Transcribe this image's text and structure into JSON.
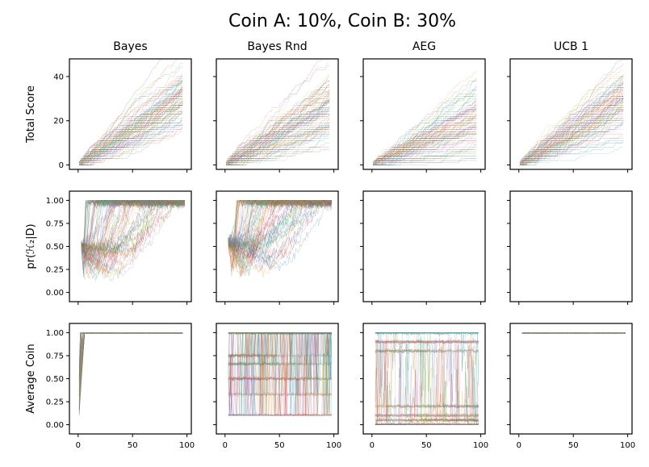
{
  "figure": {
    "title": "Coin A: 10%, Coin B: 30%"
  },
  "palette": [
    "#1f77b4",
    "#ff7f0e",
    "#2ca02c",
    "#d62728",
    "#9467bd",
    "#8c564b",
    "#e377c2",
    "#7f7f7f",
    "#bcbd22",
    "#17becf"
  ],
  "chart_data": [
    {
      "id": "bayes-total-score",
      "type": "line",
      "row": 0,
      "col": 0,
      "title": "Bayes",
      "ylabel": "Total Score",
      "xlim": [
        -8,
        104
      ],
      "ylim": [
        -2,
        48
      ],
      "xticks": [
        0,
        50,
        100
      ],
      "yticks": [
        0,
        20,
        40
      ],
      "ytick_labels": [
        "0",
        "20",
        "40"
      ],
      "show_x_labels": false,
      "show_y_labels": true,
      "n_runs": 90,
      "n_steps": 96,
      "pattern": {
        "kind": "cumulative",
        "rate_mean": 0.3,
        "rate_spread": 0.07,
        "start_x": 1
      }
    },
    {
      "id": "bayes-rnd-total-score",
      "type": "line",
      "row": 0,
      "col": 1,
      "title": "Bayes Rnd",
      "ylabel": "",
      "xlim": [
        -8,
        104
      ],
      "ylim": [
        -2,
        48
      ],
      "xticks": [
        0,
        50,
        100
      ],
      "yticks": [
        0,
        20,
        40
      ],
      "ytick_labels": [
        "0",
        "20",
        "40"
      ],
      "show_x_labels": false,
      "show_y_labels": false,
      "n_runs": 90,
      "n_steps": 96,
      "pattern": {
        "kind": "cumulative",
        "rate_mean": 0.27,
        "rate_spread": 0.08,
        "start_x": 1
      }
    },
    {
      "id": "aeg-total-score",
      "type": "line",
      "row": 0,
      "col": 2,
      "title": "AEG",
      "ylabel": "",
      "xlim": [
        -8,
        104
      ],
      "ylim": [
        -2,
        48
      ],
      "xticks": [
        0,
        50,
        100
      ],
      "yticks": [
        0,
        20,
        40
      ],
      "ytick_labels": [
        "0",
        "20",
        "40"
      ],
      "show_x_labels": false,
      "show_y_labels": false,
      "n_runs": 90,
      "n_steps": 96,
      "pattern": {
        "kind": "cumulative",
        "rate_mean": 0.2,
        "rate_spread": 0.09,
        "start_x": 1
      }
    },
    {
      "id": "ucb1-total-score",
      "type": "line",
      "row": 0,
      "col": 3,
      "title": "UCB 1",
      "ylabel": "",
      "xlim": [
        -8,
        104
      ],
      "ylim": [
        -2,
        48
      ],
      "xticks": [
        0,
        50,
        100
      ],
      "yticks": [
        0,
        20,
        40
      ],
      "ytick_labels": [
        "0",
        "20",
        "40"
      ],
      "show_x_labels": false,
      "show_y_labels": false,
      "n_runs": 90,
      "n_steps": 96,
      "pattern": {
        "kind": "cumulative",
        "rate_mean": 0.29,
        "rate_spread": 0.07,
        "start_x": 1
      }
    },
    {
      "id": "bayes-posterior",
      "type": "line",
      "row": 1,
      "col": 0,
      "title": "",
      "ylabel": "pr(ℋ₂|D)",
      "xlim": [
        -8,
        104
      ],
      "ylim": [
        -0.1,
        1.1
      ],
      "xticks": [
        0,
        50,
        100
      ],
      "yticks": [
        0,
        0.25,
        0.5,
        0.75,
        1.0
      ],
      "ytick_labels": [
        "0.00",
        "0.25",
        "0.50",
        "0.75",
        "1.00"
      ],
      "show_x_labels": false,
      "show_y_labels": true,
      "n_runs": 90,
      "n_steps": 96,
      "pattern": {
        "kind": "posterior",
        "start_x": 3,
        "start_value": 0.5,
        "dip_min": 0.15,
        "converge_min": 4,
        "converge_max": 95
      }
    },
    {
      "id": "bayes-rnd-posterior",
      "type": "line",
      "row": 1,
      "col": 1,
      "title": "",
      "ylabel": "",
      "xlim": [
        -8,
        104
      ],
      "ylim": [
        -0.1,
        1.1
      ],
      "xticks": [
        0,
        50,
        100
      ],
      "yticks": [
        0,
        0.25,
        0.5,
        0.75,
        1.0
      ],
      "ytick_labels": [
        "0.00",
        "0.25",
        "0.50",
        "0.75",
        "1.00"
      ],
      "show_x_labels": false,
      "show_y_labels": false,
      "n_runs": 90,
      "n_steps": 96,
      "pattern": {
        "kind": "posterior",
        "start_x": 3,
        "start_value": 0.55,
        "dip_min": 0.2,
        "converge_min": 8,
        "converge_max": 95
      }
    },
    {
      "id": "aeg-posterior",
      "type": "line",
      "row": 1,
      "col": 2,
      "title": "",
      "ylabel": "",
      "xlim": [
        -8,
        104
      ],
      "ylim": [
        -0.1,
        1.1
      ],
      "xticks": [
        0,
        50,
        100
      ],
      "yticks": [
        0,
        0.25,
        0.5,
        0.75,
        1.0
      ],
      "ytick_labels": [
        "0.00",
        "0.25",
        "0.50",
        "0.75",
        "1.00"
      ],
      "show_x_labels": false,
      "show_y_labels": false,
      "n_runs": 0,
      "n_steps": 96,
      "pattern": {
        "kind": "empty"
      }
    },
    {
      "id": "ucb1-posterior",
      "type": "line",
      "row": 1,
      "col": 3,
      "title": "",
      "ylabel": "",
      "xlim": [
        -8,
        104
      ],
      "ylim": [
        -0.1,
        1.1
      ],
      "xticks": [
        0,
        50,
        100
      ],
      "yticks": [
        0,
        0.25,
        0.5,
        0.75,
        1.0
      ],
      "ytick_labels": [
        "0.00",
        "0.25",
        "0.50",
        "0.75",
        "1.00"
      ],
      "show_x_labels": false,
      "show_y_labels": false,
      "n_runs": 0,
      "n_steps": 96,
      "pattern": {
        "kind": "empty"
      }
    },
    {
      "id": "bayes-average-coin",
      "type": "line",
      "row": 2,
      "col": 0,
      "title": "",
      "ylabel": "Average Coin",
      "xlim": [
        -8,
        104
      ],
      "ylim": [
        -0.1,
        1.1
      ],
      "xticks": [
        0,
        50,
        100
      ],
      "yticks": [
        0,
        0.25,
        0.5,
        0.75,
        1.0
      ],
      "ytick_labels": [
        "0.00",
        "0.25",
        "0.50",
        "0.75",
        "1.00"
      ],
      "xtick_labels": [
        "0",
        "50",
        "100"
      ],
      "show_x_labels": true,
      "show_y_labels": true,
      "n_runs": 90,
      "n_steps": 96,
      "pattern": {
        "kind": "avgcoin",
        "converge_max": 5,
        "low_start": 0.1
      }
    },
    {
      "id": "bayes-rnd-average-coin",
      "type": "line",
      "row": 2,
      "col": 1,
      "title": "",
      "ylabel": "",
      "xlim": [
        -8,
        104
      ],
      "ylim": [
        -0.1,
        1.1
      ],
      "xticks": [
        0,
        50,
        100
      ],
      "yticks": [
        0,
        0.25,
        0.5,
        0.75,
        1.0
      ],
      "ytick_labels": [
        "0.00",
        "0.25",
        "0.50",
        "0.75",
        "1.00"
      ],
      "xtick_labels": [
        "0",
        "50",
        "100"
      ],
      "show_x_labels": true,
      "show_y_labels": false,
      "n_runs": 90,
      "n_steps": 96,
      "pattern": {
        "kind": "randmix",
        "start_x": 3,
        "levels": [
          0.1,
          0.33,
          0.5,
          0.66,
          0.75,
          1.0
        ]
      }
    },
    {
      "id": "aeg-average-coin",
      "type": "line",
      "row": 2,
      "col": 2,
      "title": "",
      "ylabel": "",
      "xlim": [
        -8,
        104
      ],
      "ylim": [
        -0.1,
        1.1
      ],
      "xticks": [
        0,
        50,
        100
      ],
      "yticks": [
        0,
        0.25,
        0.5,
        0.75,
        1.0
      ],
      "ytick_labels": [
        "0.00",
        "0.25",
        "0.50",
        "0.75",
        "1.00"
      ],
      "xtick_labels": [
        "0",
        "50",
        "100"
      ],
      "show_x_labels": true,
      "show_y_labels": false,
      "n_runs": 90,
      "n_steps": 96,
      "pattern": {
        "kind": "bands",
        "start_x": 3,
        "levels": [
          0.0,
          0.05,
          0.1,
          0.2,
          0.8,
          0.9,
          1.0
        ]
      }
    },
    {
      "id": "ucb1-average-coin",
      "type": "line",
      "row": 2,
      "col": 3,
      "title": "",
      "ylabel": "",
      "xlim": [
        -8,
        104
      ],
      "ylim": [
        -0.1,
        1.1
      ],
      "xticks": [
        0,
        50,
        100
      ],
      "yticks": [
        0,
        0.25,
        0.5,
        0.75,
        1.0
      ],
      "ytick_labels": [
        "0.00",
        "0.25",
        "0.50",
        "0.75",
        "1.00"
      ],
      "xtick_labels": [
        "0",
        "50",
        "100"
      ],
      "show_x_labels": true,
      "show_y_labels": false,
      "n_runs": 90,
      "n_steps": 96,
      "pattern": {
        "kind": "flat",
        "start_x": 3,
        "value": 1.0
      }
    }
  ]
}
